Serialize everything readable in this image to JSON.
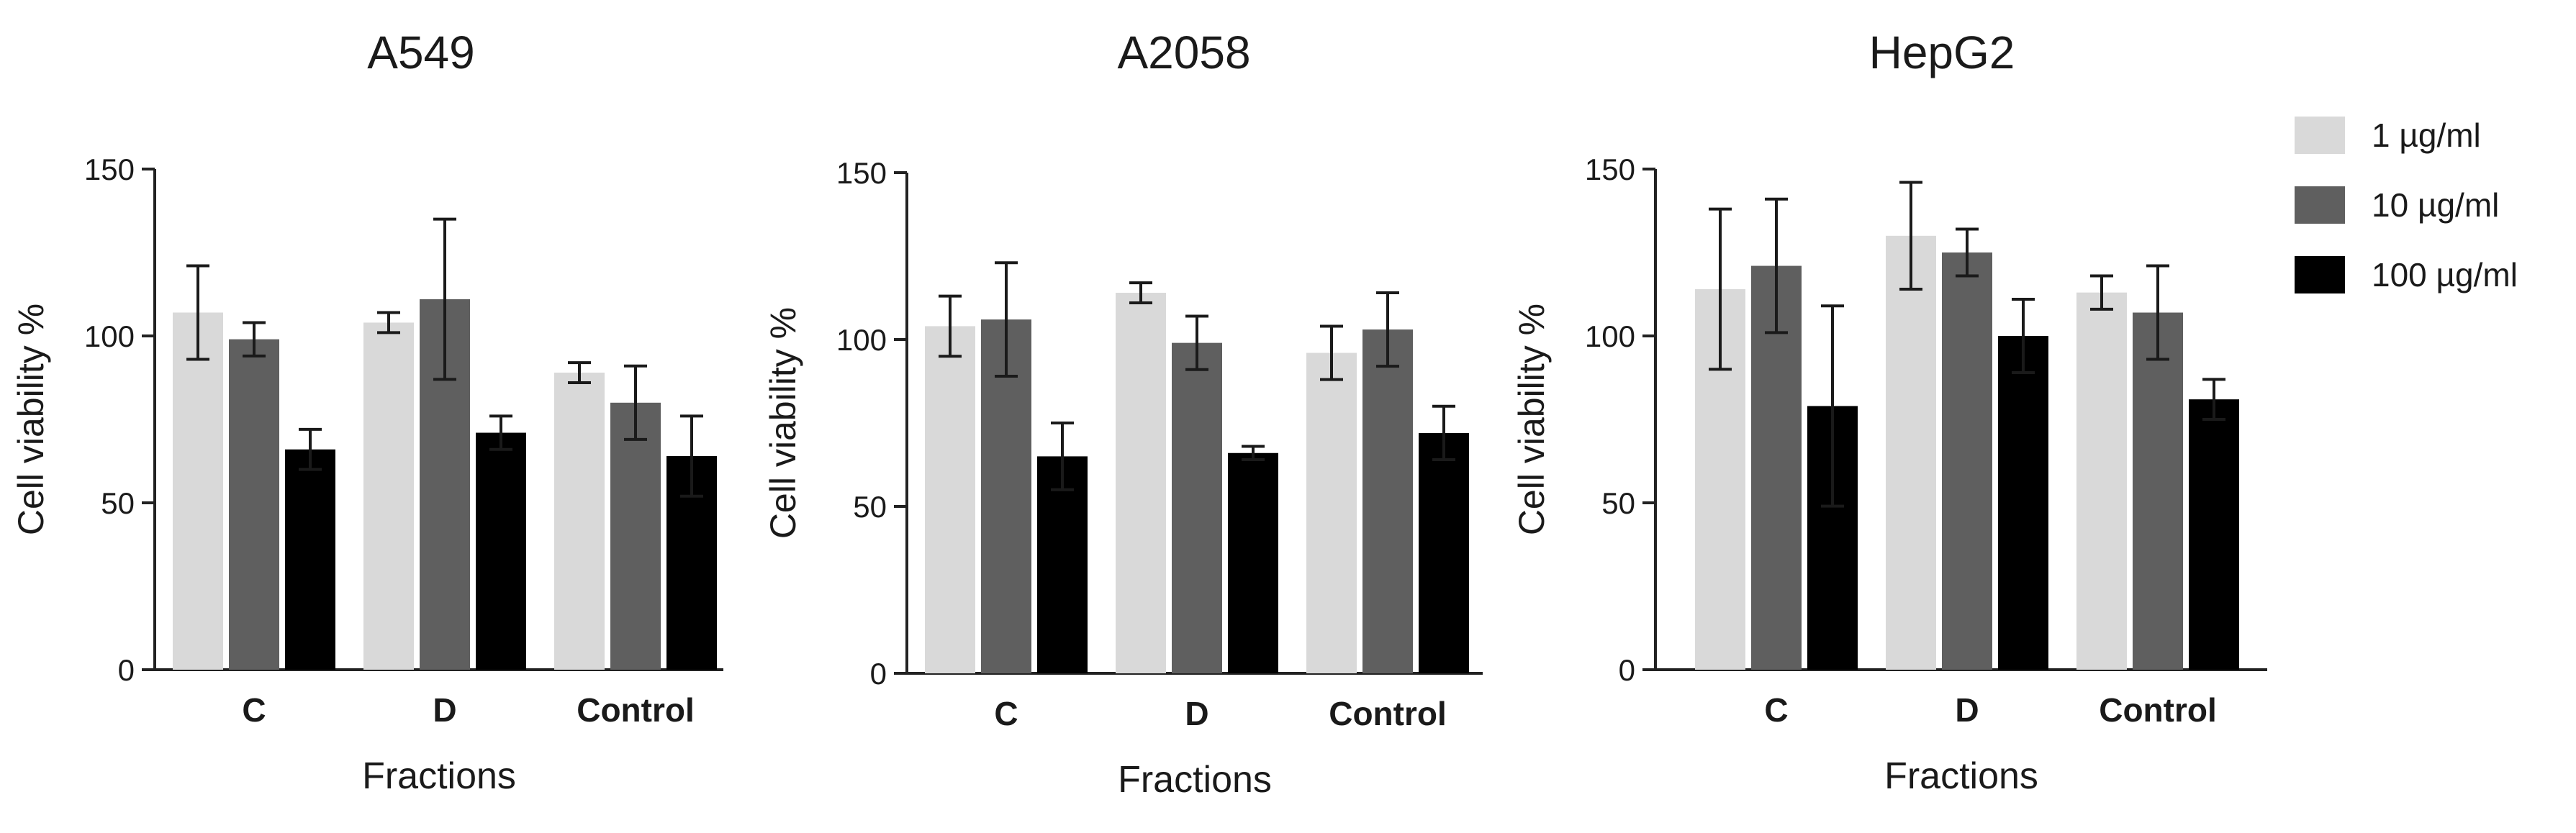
{
  "chart_data": [
    {
      "type": "bar",
      "title": "A549",
      "xlabel": "Fractions",
      "ylabel": "Cell viability %",
      "categories": [
        "C",
        "D",
        "Control"
      ],
      "ylim": [
        0,
        150
      ],
      "yticks": [
        0,
        50,
        100,
        150
      ],
      "grid": false,
      "series": [
        {
          "name": "1 µg/ml",
          "values": [
            107,
            104,
            89
          ],
          "errors": [
            14,
            3,
            3
          ]
        },
        {
          "name": "10 µg/ml",
          "values": [
            99,
            111,
            80
          ],
          "errors": [
            5,
            24,
            11
          ]
        },
        {
          "name": "100 µg/ml",
          "values": [
            66,
            71,
            64
          ],
          "errors": [
            6,
            5,
            12
          ]
        }
      ]
    },
    {
      "type": "bar",
      "title": "A2058",
      "xlabel": "Fractions",
      "ylabel": "Cell viability %",
      "categories": [
        "C",
        "D",
        "Control"
      ],
      "ylim": [
        0,
        150
      ],
      "yticks": [
        0,
        50,
        100,
        150
      ],
      "grid": false,
      "series": [
        {
          "name": "1 µg/ml",
          "values": [
            104,
            114,
            96
          ],
          "errors": [
            9,
            3,
            8
          ]
        },
        {
          "name": "10 µg/ml",
          "values": [
            106,
            99,
            103
          ],
          "errors": [
            17,
            8,
            11
          ]
        },
        {
          "name": "100 µg/ml",
          "values": [
            65,
            66,
            72
          ],
          "errors": [
            10,
            2,
            8
          ]
        }
      ]
    },
    {
      "type": "bar",
      "title": "HepG2",
      "xlabel": "Fractions",
      "ylabel": "Cell viability %",
      "categories": [
        "C",
        "D",
        "Control"
      ],
      "ylim": [
        0,
        150
      ],
      "yticks": [
        0,
        50,
        100,
        150
      ],
      "grid": false,
      "legend": "right",
      "series": [
        {
          "name": "1 µg/ml",
          "values": [
            114,
            130,
            113
          ],
          "errors": [
            24,
            16,
            5
          ]
        },
        {
          "name": "10 µg/ml",
          "values": [
            121,
            125,
            107
          ],
          "errors": [
            20,
            7,
            14
          ]
        },
        {
          "name": "100 µg/ml",
          "values": [
            79,
            100,
            81
          ],
          "errors": [
            30,
            11,
            6
          ]
        }
      ]
    }
  ],
  "legend": {
    "items": [
      {
        "label": "1 µg/ml",
        "color": "#d9d9d9"
      },
      {
        "label": "10 µg/ml",
        "color": "#5f5f5f"
      },
      {
        "label": "100 µg/ml",
        "color": "#000000"
      }
    ]
  },
  "colors": {
    "series": [
      "#d9d9d9",
      "#5f5f5f",
      "#000000"
    ],
    "axis": "#222222"
  }
}
